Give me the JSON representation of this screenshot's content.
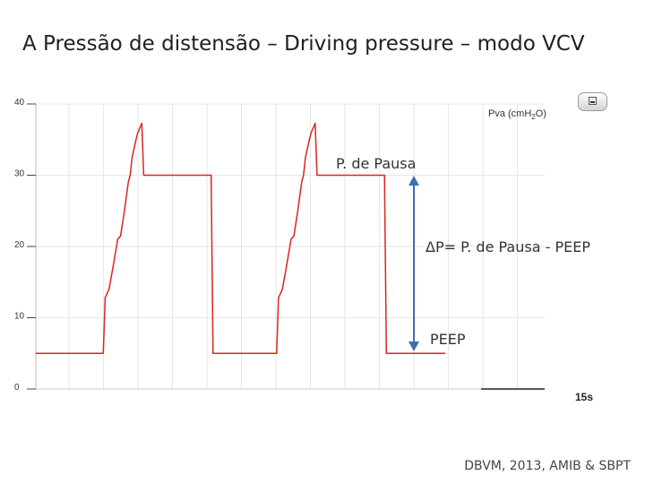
{
  "slide": {
    "title": "A Pressão de distensão – Driving pressure – modo VCV",
    "credit": "DBVM, 2013, AMIB & SBPT"
  },
  "icons": {
    "minimize": "minimize-window-icon"
  },
  "chart_data": {
    "type": "line",
    "title": "",
    "unit_label": "Pva (cmH2O)",
    "x_end_label": "15s",
    "ylim": [
      0,
      40
    ],
    "y_ticks": [
      "0",
      "10",
      "20",
      "30",
      "40"
    ],
    "grid": true,
    "series": [
      {
        "color": "#d9261c",
        "points": [
          [
            0,
            5
          ],
          [
            0.7,
            5
          ],
          [
            0.72,
            12.8
          ],
          [
            0.76,
            14
          ],
          [
            0.8,
            17
          ],
          [
            0.85,
            21
          ],
          [
            0.88,
            21.5
          ],
          [
            0.92,
            25
          ],
          [
            0.96,
            29
          ],
          [
            0.98,
            30
          ],
          [
            1.0,
            32.5
          ],
          [
            1.04,
            35
          ],
          [
            1.06,
            36
          ],
          [
            1.1,
            37.3
          ],
          [
            1.12,
            30
          ],
          [
            1.12,
            30
          ],
          [
            1.82,
            30
          ],
          [
            1.84,
            5
          ],
          [
            2.5,
            5
          ],
          [
            2.52,
            12.8
          ],
          [
            2.56,
            14
          ],
          [
            2.6,
            17
          ],
          [
            2.65,
            21
          ],
          [
            2.68,
            21.5
          ],
          [
            2.72,
            25
          ],
          [
            2.76,
            29
          ],
          [
            2.78,
            30
          ],
          [
            2.8,
            32.5
          ],
          [
            2.84,
            35
          ],
          [
            2.86,
            36
          ],
          [
            2.9,
            37.3
          ],
          [
            2.92,
            30
          ],
          [
            3.62,
            30
          ],
          [
            3.64,
            5
          ],
          [
            4.25,
            5
          ]
        ]
      }
    ],
    "annotations": {
      "plateau_pressure": "P. de Pausa",
      "delta_p": "ΔP= P. de Pausa - PEEP",
      "peep": "PEEP",
      "arrow_color": "#3e6fb0"
    }
  }
}
